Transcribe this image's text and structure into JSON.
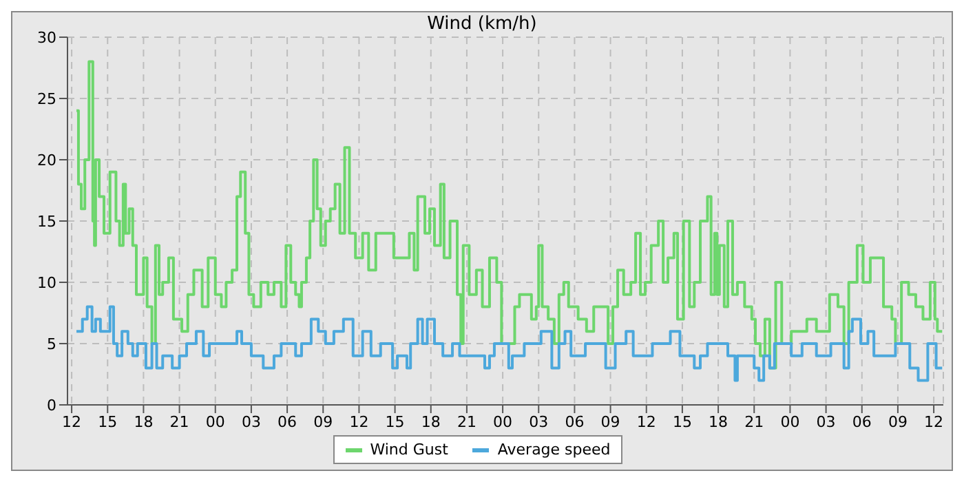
{
  "chart_data": {
    "type": "step",
    "title": "Wind (km/h)",
    "xlim": [
      "2000-01-01T11:39",
      "2000-01-04T12:48"
    ],
    "xticks": [
      {
        "value": "2000-01-01T12:00",
        "label": "12"
      },
      {
        "value": "2000-01-01T15:00",
        "label": "15"
      },
      {
        "value": "2000-01-01T18:00",
        "label": "18"
      },
      {
        "value": "2000-01-01T21:00",
        "label": "21"
      },
      {
        "value": "2000-01-02T00:00",
        "label": "00"
      },
      {
        "value": "2000-01-02T03:00",
        "label": "03"
      },
      {
        "value": "2000-01-02T06:00",
        "label": "06"
      },
      {
        "value": "2000-01-02T09:00",
        "label": "09"
      },
      {
        "value": "2000-01-02T12:00",
        "label": "12"
      },
      {
        "value": "2000-01-02T15:00",
        "label": "15"
      },
      {
        "value": "2000-01-02T18:00",
        "label": "18"
      },
      {
        "value": "2000-01-02T21:00",
        "label": "21"
      },
      {
        "value": "2000-01-03T00:00",
        "label": "00"
      },
      {
        "value": "2000-01-03T03:00",
        "label": "03"
      },
      {
        "value": "2000-01-03T06:00",
        "label": "06"
      },
      {
        "value": "2000-01-03T09:00",
        "label": "09"
      },
      {
        "value": "2000-01-03T12:00",
        "label": "12"
      },
      {
        "value": "2000-01-03T15:00",
        "label": "15"
      },
      {
        "value": "2000-01-03T18:00",
        "label": "18"
      },
      {
        "value": "2000-01-03T21:00",
        "label": "21"
      },
      {
        "value": "2000-01-04T00:00",
        "label": "00"
      },
      {
        "value": "2000-01-04T03:00",
        "label": "03"
      },
      {
        "value": "2000-01-04T06:00",
        "label": "06"
      },
      {
        "value": "2000-01-04T09:00",
        "label": "09"
      },
      {
        "value": "2000-01-04T12:00",
        "label": "12"
      }
    ],
    "ylim": [
      0,
      30
    ],
    "yticks": [
      0,
      5,
      10,
      15,
      20,
      25,
      30
    ],
    "grid": true,
    "legend": "bottom",
    "line_style": "solid",
    "marker": "none",
    "series": [
      {
        "name": "Wind Gust",
        "color": "#6dd66d",
        "x": [
          "2000-01-01T12:24",
          "2000-01-01T12:34",
          "2000-01-01T12:48",
          "2000-01-01T13:06",
          "2000-01-01T13:27",
          "2000-01-01T13:46",
          "2000-01-01T13:54",
          "2000-01-01T14:00",
          "2000-01-01T14:18",
          "2000-01-01T14:42",
          "2000-01-01T15:12",
          "2000-01-01T15:42",
          "2000-01-01T16:00",
          "2000-01-01T16:18",
          "2000-01-01T16:30",
          "2000-01-01T16:48",
          "2000-01-01T17:06",
          "2000-01-01T17:24",
          "2000-01-01T18:00",
          "2000-01-01T18:18",
          "2000-01-01T18:42",
          "2000-01-01T19:00",
          "2000-01-01T19:18",
          "2000-01-01T19:36",
          "2000-01-01T20:06",
          "2000-01-01T20:30",
          "2000-01-01T21:12",
          "2000-01-01T21:42",
          "2000-01-01T22:12",
          "2000-01-01T22:54",
          "2000-01-01T23:24",
          "2000-01-02T00:00",
          "2000-01-02T00:30",
          "2000-01-02T00:54",
          "2000-01-02T01:24",
          "2000-01-02T01:48",
          "2000-01-02T02:06",
          "2000-01-02T02:30",
          "2000-01-02T02:48",
          "2000-01-02T03:12",
          "2000-01-02T03:48",
          "2000-01-02T04:24",
          "2000-01-02T04:54",
          "2000-01-02T05:30",
          "2000-01-02T05:54",
          "2000-01-02T06:18",
          "2000-01-02T06:42",
          "2000-01-02T07:00",
          "2000-01-02T07:12",
          "2000-01-02T07:36",
          "2000-01-02T07:54",
          "2000-01-02T08:12",
          "2000-01-02T08:30",
          "2000-01-02T08:48",
          "2000-01-02T09:12",
          "2000-01-02T09:36",
          "2000-01-02T10:00",
          "2000-01-02T10:24",
          "2000-01-02T10:48",
          "2000-01-02T11:12",
          "2000-01-02T11:42",
          "2000-01-02T12:18",
          "2000-01-02T12:48",
          "2000-01-02T13:24",
          "2000-01-02T14:12",
          "2000-01-02T14:54",
          "2000-01-02T15:36",
          "2000-01-02T16:12",
          "2000-01-02T16:36",
          "2000-01-02T16:54",
          "2000-01-02T17:30",
          "2000-01-02T17:54",
          "2000-01-02T18:18",
          "2000-01-02T18:48",
          "2000-01-02T19:06",
          "2000-01-02T19:36",
          "2000-01-02T20:12",
          "2000-01-02T20:30",
          "2000-01-02T20:42",
          "2000-01-02T21:12",
          "2000-01-02T21:48",
          "2000-01-02T22:18",
          "2000-01-02T22:54",
          "2000-01-02T23:30",
          "2000-01-02T23:54",
          "2000-01-03T01:00",
          "2000-01-03T01:24",
          "2000-01-03T02:00",
          "2000-01-03T02:24",
          "2000-01-03T02:48",
          "2000-01-03T03:00",
          "2000-01-03T03:18",
          "2000-01-03T03:48",
          "2000-01-03T04:18",
          "2000-01-03T04:42",
          "2000-01-03T05:06",
          "2000-01-03T05:30",
          "2000-01-03T06:18",
          "2000-01-03T07:00",
          "2000-01-03T07:36",
          "2000-01-03T08:48",
          "2000-01-03T09:12",
          "2000-01-03T09:36",
          "2000-01-03T10:06",
          "2000-01-03T10:42",
          "2000-01-03T11:06",
          "2000-01-03T11:30",
          "2000-01-03T11:54",
          "2000-01-03T12:24",
          "2000-01-03T13:00",
          "2000-01-03T13:24",
          "2000-01-03T13:48",
          "2000-01-03T14:18",
          "2000-01-03T14:36",
          "2000-01-03T15:06",
          "2000-01-03T15:36",
          "2000-01-03T16:00",
          "2000-01-03T16:30",
          "2000-01-03T17:06",
          "2000-01-03T17:24",
          "2000-01-03T17:42",
          "2000-01-03T17:54",
          "2000-01-03T18:06",
          "2000-01-03T18:30",
          "2000-01-03T18:48",
          "2000-01-03T19:12",
          "2000-01-03T19:36",
          "2000-01-03T20:12",
          "2000-01-03T20:48",
          "2000-01-03T21:06",
          "2000-01-03T21:30",
          "2000-01-03T21:54",
          "2000-01-03T22:18",
          "2000-01-03T22:48",
          "2000-01-03T23:18",
          "2000-01-04T00:06",
          "2000-01-04T01:24",
          "2000-01-04T02:12",
          "2000-01-04T03:18",
          "2000-01-04T04:00",
          "2000-01-04T04:30",
          "2000-01-04T04:54",
          "2000-01-04T05:36",
          "2000-01-04T06:06",
          "2000-01-04T06:42",
          "2000-01-04T07:12",
          "2000-01-04T07:48",
          "2000-01-04T08:30",
          "2000-01-04T08:48",
          "2000-01-04T09:18",
          "2000-01-04T09:54",
          "2000-01-04T10:30",
          "2000-01-04T11:06",
          "2000-01-04T11:42",
          "2000-01-04T12:06",
          "2000-01-04T12:18",
          "2000-01-04T12:42"
        ],
        "values": [
          24,
          18,
          16,
          20,
          28,
          15,
          13,
          20,
          17,
          14,
          19,
          15,
          13,
          18,
          14,
          16,
          13,
          9,
          12,
          8,
          5,
          13,
          9,
          10,
          12,
          7,
          6,
          9,
          11,
          8,
          12,
          9,
          8,
          10,
          11,
          17,
          19,
          14,
          9,
          8,
          10,
          9,
          10,
          8,
          13,
          10,
          9,
          8,
          10,
          12,
          15,
          20,
          16,
          13,
          15,
          16,
          18,
          14,
          21,
          14,
          12,
          14,
          11,
          14,
          14,
          12,
          12,
          14,
          11,
          17,
          14,
          16,
          13,
          18,
          12,
          15,
          9,
          5,
          13,
          9,
          11,
          8,
          12,
          10,
          5,
          8,
          9,
          9,
          7,
          8,
          13,
          8,
          7,
          5,
          9,
          10,
          8,
          7,
          6,
          8,
          5,
          8,
          11,
          9,
          10,
          14,
          9,
          10,
          13,
          15,
          10,
          12,
          14,
          7,
          15,
          8,
          10,
          15,
          17,
          9,
          14,
          9,
          13,
          8,
          15,
          9,
          10,
          8,
          7,
          5,
          4,
          7,
          3,
          10,
          5,
          6,
          7,
          6,
          9,
          8,
          5,
          10,
          13,
          10,
          12,
          12,
          8,
          7,
          5,
          10,
          9,
          8,
          7,
          10,
          7,
          6,
          6
        ]
      },
      {
        "name": "Average speed",
        "color": "#4ca8dc",
        "x": [
          "2000-01-01T12:24",
          "2000-01-01T12:54",
          "2000-01-01T13:18",
          "2000-01-01T13:42",
          "2000-01-01T14:00",
          "2000-01-01T14:24",
          "2000-01-01T15:12",
          "2000-01-01T15:30",
          "2000-01-01T15:48",
          "2000-01-01T16:12",
          "2000-01-01T16:42",
          "2000-01-01T17:06",
          "2000-01-01T17:30",
          "2000-01-01T18:12",
          "2000-01-01T18:42",
          "2000-01-01T19:06",
          "2000-01-01T19:36",
          "2000-01-01T20:24",
          "2000-01-01T21:00",
          "2000-01-01T21:36",
          "2000-01-01T22:24",
          "2000-01-01T23:00",
          "2000-01-01T23:30",
          "2000-01-02T00:30",
          "2000-01-02T01:48",
          "2000-01-02T02:12",
          "2000-01-02T03:00",
          "2000-01-02T04:00",
          "2000-01-02T04:54",
          "2000-01-02T05:30",
          "2000-01-02T06:42",
          "2000-01-02T07:12",
          "2000-01-02T08:00",
          "2000-01-02T08:36",
          "2000-01-02T09:12",
          "2000-01-02T09:54",
          "2000-01-02T10:42",
          "2000-01-02T11:30",
          "2000-01-02T12:18",
          "2000-01-02T13:00",
          "2000-01-02T13:48",
          "2000-01-02T14:48",
          "2000-01-02T15:12",
          "2000-01-02T16:00",
          "2000-01-02T16:18",
          "2000-01-02T16:54",
          "2000-01-02T17:18",
          "2000-01-02T17:42",
          "2000-01-02T18:18",
          "2000-01-02T19:00",
          "2000-01-02T19:48",
          "2000-01-02T20:24",
          "2000-01-02T22:30",
          "2000-01-02T22:54",
          "2000-01-02T23:18",
          "2000-01-03T00:30",
          "2000-01-03T00:48",
          "2000-01-03T01:48",
          "2000-01-03T03:12",
          "2000-01-03T04:06",
          "2000-01-03T04:42",
          "2000-01-03T05:12",
          "2000-01-03T05:42",
          "2000-01-03T06:54",
          "2000-01-03T08:36",
          "2000-01-03T09:24",
          "2000-01-03T10:18",
          "2000-01-03T10:54",
          "2000-01-03T12:30",
          "2000-01-03T14:00",
          "2000-01-03T14:48",
          "2000-01-03T16:00",
          "2000-01-03T16:30",
          "2000-01-03T17:06",
          "2000-01-03T17:54",
          "2000-01-03T18:48",
          "2000-01-03T19:24",
          "2000-01-03T19:36",
          "2000-01-03T21:00",
          "2000-01-03T21:24",
          "2000-01-03T21:48",
          "2000-01-03T22:18",
          "2000-01-03T22:42",
          "2000-01-04T00:06",
          "2000-01-04T01:00",
          "2000-01-04T02:12",
          "2000-01-04T03:24",
          "2000-01-04T04:30",
          "2000-01-04T04:54",
          "2000-01-04T05:12",
          "2000-01-04T05:54",
          "2000-01-04T06:30",
          "2000-01-04T07:00",
          "2000-01-04T08:48",
          "2000-01-04T10:00",
          "2000-01-04T10:42",
          "2000-01-04T11:30",
          "2000-01-04T12:12",
          "2000-01-04T12:42"
        ],
        "values": [
          6,
          7,
          8,
          6,
          7,
          6,
          8,
          5,
          4,
          6,
          5,
          4,
          5,
          3,
          5,
          3,
          4,
          3,
          4,
          5,
          6,
          4,
          5,
          5,
          6,
          5,
          4,
          3,
          4,
          5,
          4,
          5,
          7,
          6,
          5,
          6,
          7,
          4,
          6,
          4,
          5,
          3,
          4,
          3,
          5,
          7,
          5,
          7,
          5,
          4,
          5,
          4,
          3,
          4,
          5,
          3,
          4,
          5,
          6,
          3,
          5,
          6,
          4,
          5,
          3,
          5,
          6,
          4,
          5,
          6,
          4,
          3,
          4,
          5,
          5,
          4,
          2,
          4,
          3,
          2,
          4,
          3,
          5,
          4,
          5,
          4,
          5,
          3,
          6,
          7,
          5,
          6,
          4,
          5,
          3,
          2,
          5,
          3,
          3
        ]
      }
    ]
  }
}
